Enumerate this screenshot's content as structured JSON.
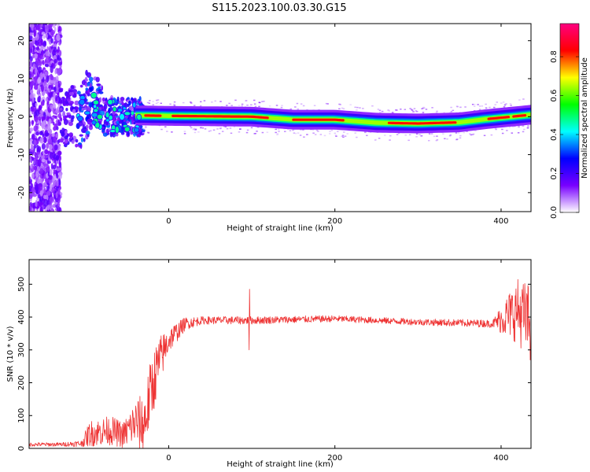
{
  "figure": {
    "title": "S115.2023.100.03.30.G15"
  },
  "chart_data": [
    {
      "type": "heatmap",
      "xlabel": "Height of straight line (km)",
      "ylabel": "Frequency (Hz)",
      "xlim": [
        -168,
        436
      ],
      "ylim": [
        -25,
        24.5
      ],
      "xticks": [
        0,
        200,
        400
      ],
      "yticks": [
        -20,
        -10,
        0,
        10,
        20
      ],
      "colorbar": {
        "label": "Normalized spectral amplitude",
        "range": [
          0,
          0.97
        ],
        "ticks": [
          0.0,
          0.2,
          0.4,
          0.6,
          0.8
        ],
        "tick_labels": [
          "0.0",
          "0.2",
          "0.4",
          "0.6",
          "0.8"
        ],
        "colors": [
          "#ffffff",
          "#7800ff",
          "#0000ff",
          "#00ffff",
          "#00ff00",
          "#ffff00",
          "#ff0000",
          "#ff0080"
        ]
      },
      "ridge": {
        "x": [
          -30,
          0,
          100,
          150,
          200,
          250,
          300,
          350,
          380,
          436
        ],
        "freq": [
          0.3,
          0.2,
          0.0,
          -0.8,
          -0.8,
          -1.6,
          -1.8,
          -1.5,
          -0.7,
          0.5
        ]
      }
    },
    {
      "type": "line",
      "xlabel": "Height of straight line (km)",
      "ylabel": "SNR (10 * v/v)",
      "xlim": [
        -168,
        436
      ],
      "ylim": [
        0,
        575
      ],
      "xticks": [
        0,
        200,
        400
      ],
      "yticks": [
        0,
        100,
        200,
        300,
        400,
        500
      ],
      "color": "#ee3333",
      "envelope": {
        "x": [
          -168,
          -130,
          -105,
          -95,
          -70,
          -55,
          -40,
          -30,
          -20,
          -12,
          0,
          20,
          40,
          100,
          200,
          300,
          390,
          405,
          420,
          436
        ],
        "mean": [
          12,
          12,
          15,
          45,
          55,
          40,
          80,
          70,
          190,
          260,
          330,
          380,
          390,
          390,
          395,
          385,
          380,
          400,
          420,
          380
        ],
        "amp": [
          6,
          6,
          10,
          40,
          45,
          40,
          70,
          100,
          100,
          80,
          40,
          20,
          12,
          12,
          10,
          10,
          12,
          60,
          100,
          120
        ]
      },
      "spikes": [
        {
          "x": 97,
          "values": [
            300,
            485
          ]
        }
      ]
    }
  ]
}
